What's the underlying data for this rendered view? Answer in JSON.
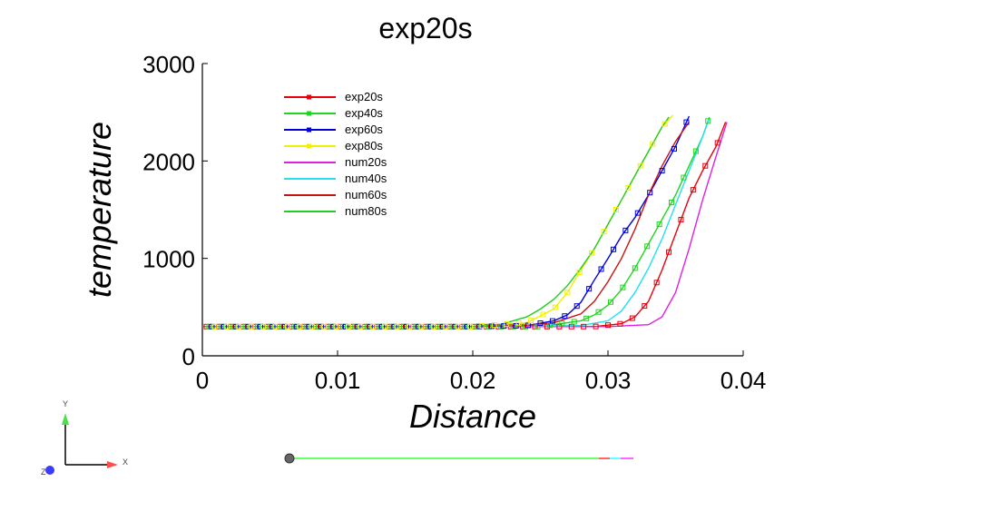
{
  "chart_data": {
    "type": "line",
    "title": "exp20s",
    "xlabel": "Distance",
    "ylabel": "temperature",
    "xlim": [
      0,
      0.04
    ],
    "ylim": [
      0,
      3000
    ],
    "xticks": [
      0,
      0.01,
      0.02,
      0.03,
      0.04
    ],
    "xtick_labels": [
      "0",
      "0.01",
      "0.02",
      "0.03",
      "0.04"
    ],
    "yticks": [
      0,
      1000,
      2000,
      3000
    ],
    "ytick_labels": [
      "0",
      "1000",
      "2000",
      "3000"
    ],
    "grid": false,
    "legend_position": "top-left",
    "series": [
      {
        "name": "exp20s",
        "color": "#e8000b",
        "marker": "square",
        "x": [
          0,
          0.005,
          0.01,
          0.015,
          0.02,
          0.025,
          0.029,
          0.031,
          0.032,
          0.033,
          0.034,
          0.035,
          0.036,
          0.037,
          0.038,
          0.0387
        ],
        "y": [
          300,
          300,
          300,
          300,
          300,
          300,
          300,
          330,
          400,
          560,
          880,
          1250,
          1620,
          1900,
          2150,
          2400
        ]
      },
      {
        "name": "exp40s",
        "color": "#1fd61f",
        "marker": "square",
        "x": [
          0,
          0.005,
          0.01,
          0.015,
          0.02,
          0.025,
          0.028,
          0.029,
          0.03,
          0.031,
          0.032,
          0.033,
          0.034,
          0.035,
          0.036,
          0.037,
          0.0375
        ],
        "y": [
          300,
          300,
          300,
          300,
          300,
          300,
          360,
          420,
          520,
          680,
          900,
          1150,
          1400,
          1650,
          1950,
          2250,
          2450
        ]
      },
      {
        "name": "exp60s",
        "color": "#0000dd",
        "marker": "square",
        "x": [
          0,
          0.005,
          0.01,
          0.015,
          0.02,
          0.024,
          0.026,
          0.027,
          0.028,
          0.029,
          0.03,
          0.031,
          0.032,
          0.033,
          0.034,
          0.035,
          0.036
        ],
        "y": [
          300,
          300,
          300,
          300,
          300,
          310,
          360,
          420,
          550,
          780,
          1000,
          1230,
          1420,
          1650,
          1900,
          2150,
          2460
        ]
      },
      {
        "name": "exp80s",
        "color": "#f0f000",
        "marker": "square",
        "x": [
          0,
          0.005,
          0.01,
          0.015,
          0.02,
          0.024,
          0.026,
          0.027,
          0.028,
          0.029,
          0.03,
          0.031,
          0.032,
          0.033,
          0.034,
          0.0348
        ],
        "y": [
          300,
          300,
          300,
          300,
          300,
          340,
          480,
          650,
          880,
          1100,
          1350,
          1600,
          1850,
          2100,
          2350,
          2470
        ]
      },
      {
        "name": "num20s",
        "color": "#e020e0",
        "marker": "none",
        "x": [
          0,
          0.01,
          0.02,
          0.03,
          0.033,
          0.034,
          0.035,
          0.036,
          0.037,
          0.038,
          0.0388
        ],
        "y": [
          300,
          300,
          300,
          300,
          320,
          400,
          650,
          1100,
          1600,
          2050,
          2400
        ]
      },
      {
        "name": "num40s",
        "color": "#22e0ee",
        "marker": "none",
        "x": [
          0,
          0.01,
          0.02,
          0.028,
          0.03,
          0.031,
          0.032,
          0.033,
          0.034,
          0.035,
          0.036,
          0.037,
          0.0375
        ],
        "y": [
          300,
          300,
          300,
          310,
          360,
          460,
          650,
          900,
          1200,
          1550,
          1900,
          2250,
          2440
        ]
      },
      {
        "name": "num60s",
        "color": "#cc1111",
        "marker": "none",
        "x": [
          0,
          0.01,
          0.02,
          0.024,
          0.026,
          0.028,
          0.029,
          0.03,
          0.031,
          0.032,
          0.033,
          0.034,
          0.035,
          0.036
        ],
        "y": [
          300,
          300,
          300,
          310,
          340,
          430,
          560,
          760,
          1000,
          1300,
          1650,
          1950,
          2200,
          2400
        ]
      },
      {
        "name": "num80s",
        "color": "#22cc22",
        "marker": "none",
        "x": [
          0,
          0.01,
          0.02,
          0.022,
          0.024,
          0.025,
          0.026,
          0.027,
          0.028,
          0.029,
          0.03,
          0.031,
          0.032,
          0.033,
          0.034,
          0.0345
        ],
        "y": [
          300,
          300,
          300,
          320,
          400,
          480,
          580,
          720,
          900,
          1100,
          1350,
          1600,
          1850,
          2100,
          2350,
          2450
        ]
      }
    ]
  },
  "axes_triad": {
    "x_label": "X",
    "y_label": "Y",
    "z_label": "Z",
    "x_color": "#ff4d4d",
    "y_color": "#4de04d",
    "z_color": "#3b3bff"
  },
  "colors": {
    "axis": "#000000",
    "line_bar_main": "#66ff66",
    "line_bar_end_red": "#ff6666",
    "line_bar_end_cyan": "#66ffff",
    "line_bar_end_magenta": "#ff66ff",
    "probe_dot": "#666666"
  }
}
